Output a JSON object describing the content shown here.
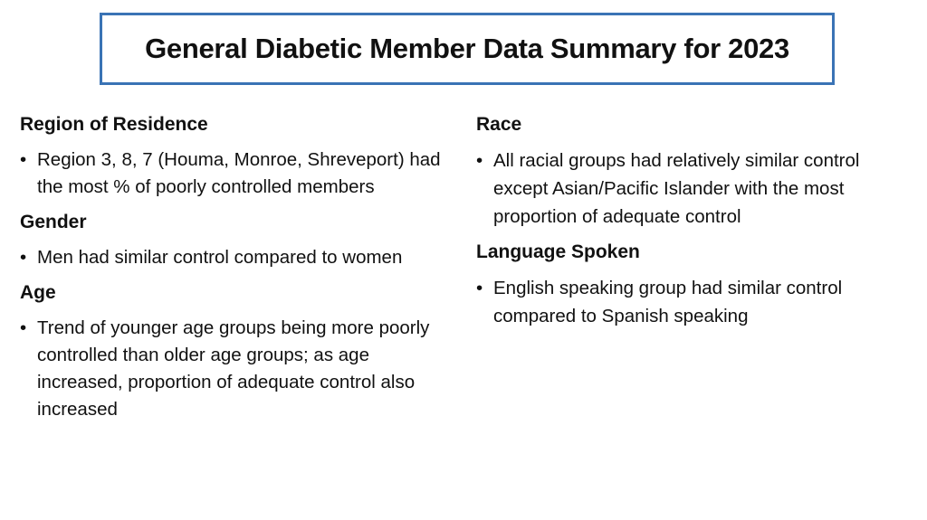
{
  "title": "General Diabetic Member Data Summary for 2023",
  "left_column": {
    "sections": [
      {
        "heading": "Region of Residence",
        "bullets": [
          "Region 3, 8, 7 (Houma, Monroe, Shreveport) had the most % of poorly controlled members"
        ]
      },
      {
        "heading": "Gender",
        "bullets": [
          "Men had similar control compared to women"
        ]
      },
      {
        "heading": "Age",
        "bullets": [
          "Trend of younger age groups being more poorly controlled than older age groups; as age increased, proportion of adequate control also increased"
        ]
      }
    ]
  },
  "right_column": {
    "sections": [
      {
        "heading": "Race",
        "bullets": [
          "All racial groups had relatively similar control except Asian/Pacific Islander with the most proportion of adequate control"
        ]
      },
      {
        "heading": "Language Spoken",
        "bullets": [
          "English speaking group had similar control compared to Spanish speaking"
        ]
      }
    ]
  },
  "colors": {
    "title_border": "#3a73b5",
    "text": "#111111",
    "background": "#ffffff"
  }
}
